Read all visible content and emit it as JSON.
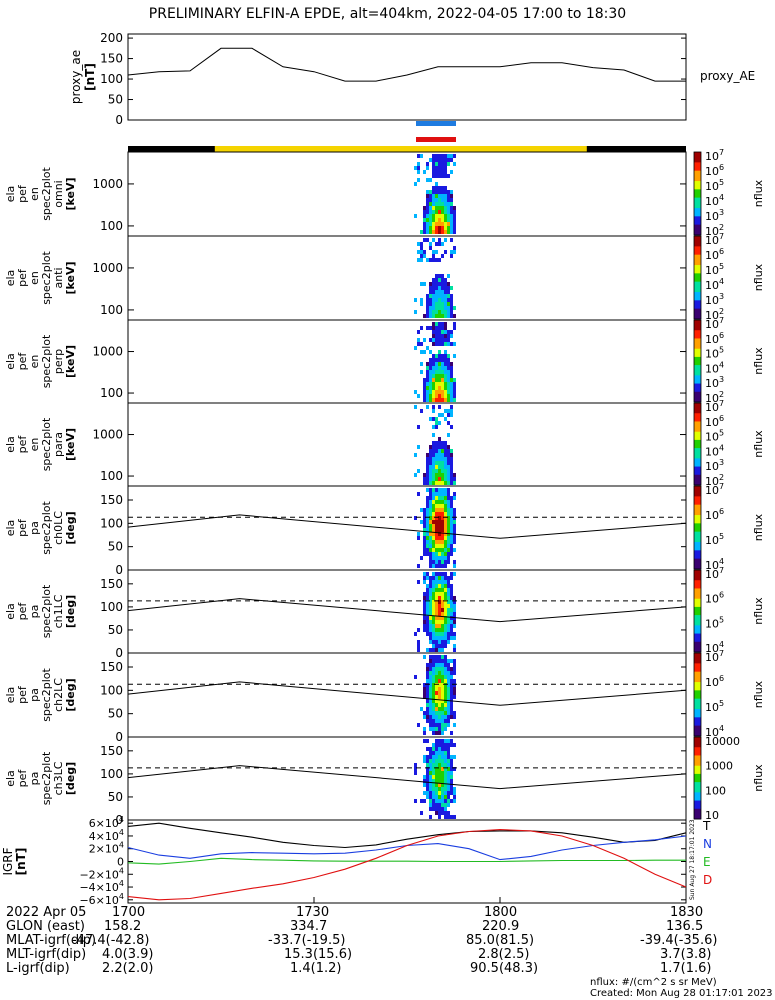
{
  "title": "PRELIMINARY ELFIN-A EPDE, alt=404km, 2022-04-05 17:00 to 18:30",
  "colors": {
    "yellow_bar": "#f5d400",
    "black_bar": "#000000",
    "blue_marker": "#1e7be0",
    "red_marker": "#e01010",
    "bt": "#000000",
    "bn": "#1a3ee0",
    "be": "#22bb22",
    "bd": "#e01010"
  },
  "colorbar_spec": {
    "ticks": [
      "10^7",
      "10^6",
      "10^5",
      "10^4",
      "10^3",
      "10^2"
    ],
    "label": "nflux"
  },
  "colorbar_pa": {
    "ticks": [
      "10^7",
      "10^6",
      "10^5",
      "10^4"
    ],
    "label": "nflux"
  },
  "colorbar_last": {
    "ticks": [
      "10000",
      "1000",
      "100",
      "10"
    ],
    "label": "nflux"
  },
  "chart_data": [
    {
      "type": "line",
      "panel": "proxy_ae",
      "ylabel": [
        "proxy_ae",
        "[nT]"
      ],
      "legend": "proxy_AE",
      "ylim": [
        0,
        210
      ],
      "yticks": [
        "200",
        "150",
        "100",
        "50",
        "0"
      ],
      "x": [
        0,
        5,
        10,
        15,
        20,
        25,
        30,
        35,
        40,
        45,
        50,
        55,
        60,
        65,
        70,
        75,
        80,
        85,
        90
      ],
      "values": [
        110,
        118,
        120,
        175,
        175,
        130,
        118,
        95,
        95,
        110,
        130,
        130,
        130,
        140,
        140,
        128,
        122,
        95,
        95
      ]
    },
    {
      "type": "heatmap",
      "panel": "spec_omni",
      "ylabel": [
        "ela",
        "pef",
        "en",
        "spec2plot",
        "omni",
        "[keV]"
      ],
      "ylog": true,
      "yticks": [
        "1000",
        "100"
      ],
      "colorbar": "nflux"
    },
    {
      "type": "heatmap",
      "panel": "spec_anti",
      "ylabel": [
        "ela",
        "pef",
        "en",
        "spec2plot",
        "anti",
        "[keV]"
      ],
      "ylog": true,
      "yticks": [
        "1000",
        "100"
      ],
      "colorbar": "nflux"
    },
    {
      "type": "heatmap",
      "panel": "spec_perp",
      "ylabel": [
        "ela",
        "pef",
        "en",
        "spec2plot",
        "perp",
        "[keV]"
      ],
      "ylog": true,
      "yticks": [
        "1000",
        "100"
      ],
      "colorbar": "nflux"
    },
    {
      "type": "heatmap",
      "panel": "spec_para",
      "ylabel": [
        "ela",
        "pef",
        "en",
        "spec2plot",
        "para",
        "[keV]"
      ],
      "ylog": true,
      "yticks": [
        "1000",
        "100"
      ],
      "colorbar": "nflux"
    },
    {
      "type": "heatmap",
      "panel": "pa_ch0",
      "ylabel": [
        "ela",
        "pef",
        "pa",
        "spec2plot",
        "ch0LC",
        "[deg]"
      ],
      "ylim": [
        0,
        180
      ],
      "yticks": [
        "150",
        "100",
        "50",
        "0"
      ],
      "colorbar": "nflux",
      "lc_solid": [
        [
          0,
          92
        ],
        [
          18,
          118
        ],
        [
          60,
          68
        ],
        [
          90,
          100
        ]
      ],
      "lc_dashed": 113
    },
    {
      "type": "heatmap",
      "panel": "pa_ch1",
      "ylabel": [
        "ela",
        "pef",
        "pa",
        "spec2plot",
        "ch1LC",
        "[deg]"
      ],
      "ylim": [
        0,
        180
      ],
      "yticks": [
        "150",
        "100",
        "50",
        "0"
      ],
      "colorbar": "nflux",
      "lc_solid": [
        [
          0,
          92
        ],
        [
          18,
          118
        ],
        [
          60,
          68
        ],
        [
          90,
          100
        ]
      ],
      "lc_dashed": 113
    },
    {
      "type": "heatmap",
      "panel": "pa_ch2",
      "ylabel": [
        "ela",
        "pef",
        "pa",
        "spec2plot",
        "ch2LC",
        "[deg]"
      ],
      "ylim": [
        0,
        180
      ],
      "yticks": [
        "150",
        "100",
        "50",
        "0"
      ],
      "colorbar": "nflux",
      "lc_solid": [
        [
          0,
          92
        ],
        [
          18,
          118
        ],
        [
          60,
          68
        ],
        [
          90,
          100
        ]
      ],
      "lc_dashed": 113
    },
    {
      "type": "heatmap",
      "panel": "pa_ch3",
      "ylabel": [
        "ela",
        "pef",
        "pa",
        "spec2plot",
        "ch3LC",
        "[deg]"
      ],
      "ylim": [
        0,
        180
      ],
      "yticks": [
        "150",
        "100",
        "50",
        "0"
      ],
      "colorbar": "nflux",
      "lc_solid": [
        [
          0,
          92
        ],
        [
          18,
          118
        ],
        [
          60,
          68
        ],
        [
          90,
          100
        ]
      ],
      "lc_dashed": 113
    },
    {
      "type": "line",
      "panel": "igrf",
      "ylabel": [
        "IGRF",
        "[nT]"
      ],
      "ylim": [
        -65000,
        65000
      ],
      "yticks": [
        "6×10^4",
        "4×10^4",
        "2×10^4",
        "0",
        "−2×10^4",
        "−4×10^4",
        "−6×10^4"
      ],
      "x": [
        0,
        5,
        10,
        15,
        20,
        25,
        30,
        35,
        40,
        45,
        50,
        55,
        60,
        65,
        70,
        75,
        80,
        85,
        90
      ],
      "series": [
        {
          "name": "T",
          "values": [
            55000,
            60000,
            52000,
            45000,
            38000,
            30000,
            25000,
            22000,
            26000,
            35000,
            42000,
            47000,
            48000,
            48000,
            45000,
            38000,
            30000,
            33000,
            45000
          ]
        },
        {
          "name": "N",
          "values": [
            22000,
            10000,
            5000,
            12000,
            14000,
            13000,
            12000,
            13000,
            18000,
            25000,
            28000,
            20000,
            3000,
            8000,
            18000,
            25000,
            30000,
            34000,
            40000
          ]
        },
        {
          "name": "E",
          "values": [
            -2000,
            -4000,
            0,
            5000,
            3000,
            2000,
            1000,
            500,
            500,
            500,
            0,
            0,
            0,
            1000,
            1500,
            1500,
            1500,
            2000,
            2000
          ]
        },
        {
          "name": "D",
          "values": [
            -55000,
            -60000,
            -58000,
            -50000,
            -42000,
            -35000,
            -25000,
            -12000,
            5000,
            25000,
            40000,
            47000,
            50000,
            48000,
            40000,
            25000,
            5000,
            -20000,
            -40000
          ]
        }
      ]
    }
  ],
  "time_row": {
    "label": "2022 Apr 05",
    "values": [
      "1700",
      "1730",
      "1800",
      "1830"
    ]
  },
  "ephem_rows": [
    {
      "label": "GLON (east)",
      "values": [
        "158.2",
        "334.7",
        "220.9",
        "136.5"
      ]
    },
    {
      "label": "MLAT-igrf(dip)",
      "values": [
        "-47.4(-42.8)",
        "-33.7(-19.5)",
        "85.0(81.5)",
        "-39.4(-35.6)"
      ]
    },
    {
      "label": "MLT-igrf(dip)",
      "values": [
        "4.0(3.9)",
        "15.3(15.6)",
        "2.8(2.5)",
        "3.7(3.8)"
      ]
    },
    {
      "label": "L-igrf(dip)",
      "values": [
        "2.2(2.0)",
        "1.4(1.2)",
        "90.5(48.3)",
        "1.7(1.6)"
      ]
    }
  ],
  "footnote_units": "nflux: #/(cm^2 s sr MeV)",
  "footnote_created": "Created: Mon Aug 28 01:17:01 2023",
  "side_stamp": "Sun Aug 27 18:17:01 2023"
}
